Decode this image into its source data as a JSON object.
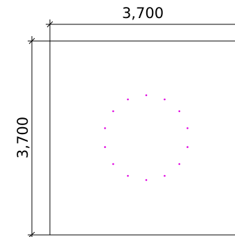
{
  "drawing": {
    "top_dimension": {
      "label": "3,700"
    },
    "left_dimension": {
      "label": "3,700"
    },
    "line_color": "#000000",
    "point_color": "#e000e0",
    "points_count": 14
  }
}
